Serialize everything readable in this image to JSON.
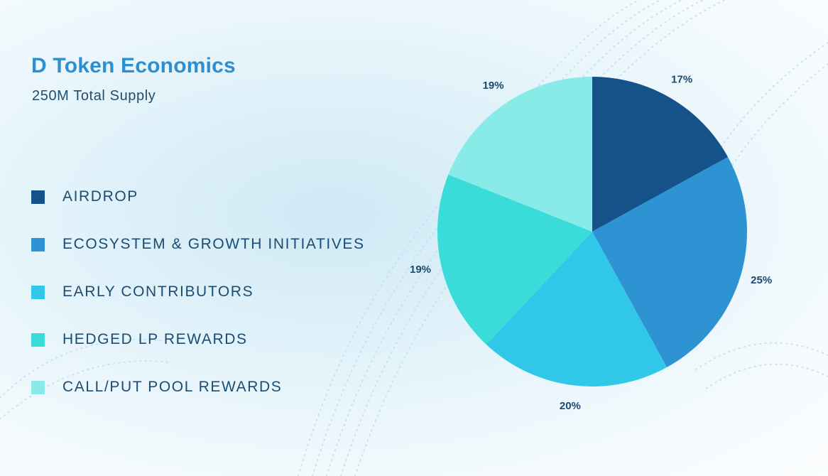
{
  "header": {
    "title": "D Token Economics",
    "subtitle": "250M Total Supply"
  },
  "chart_data": {
    "type": "pie",
    "title": "D Token Economics",
    "subtitle": "250M Total Supply",
    "legend_position": "left",
    "slices": [
      {
        "label": "AIRDROP",
        "value": 17,
        "value_label": "17%",
        "color": "#15528a"
      },
      {
        "label": "ECOSYSTEM & GROWTH INITIATIVES",
        "value": 25,
        "value_label": "25%",
        "color": "#2e93d3"
      },
      {
        "label": "EARLY CONTRIBUTORS",
        "value": 20,
        "value_label": "20%",
        "color": "#31c7e8"
      },
      {
        "label": "HEDGED LP REWARDS",
        "value": 19,
        "value_label": "19%",
        "color": "#39dcd9"
      },
      {
        "label": "CALL/PUT POOL REWARDS",
        "value": 19,
        "value_label": "19%",
        "color": "#88ebe8"
      }
    ]
  }
}
